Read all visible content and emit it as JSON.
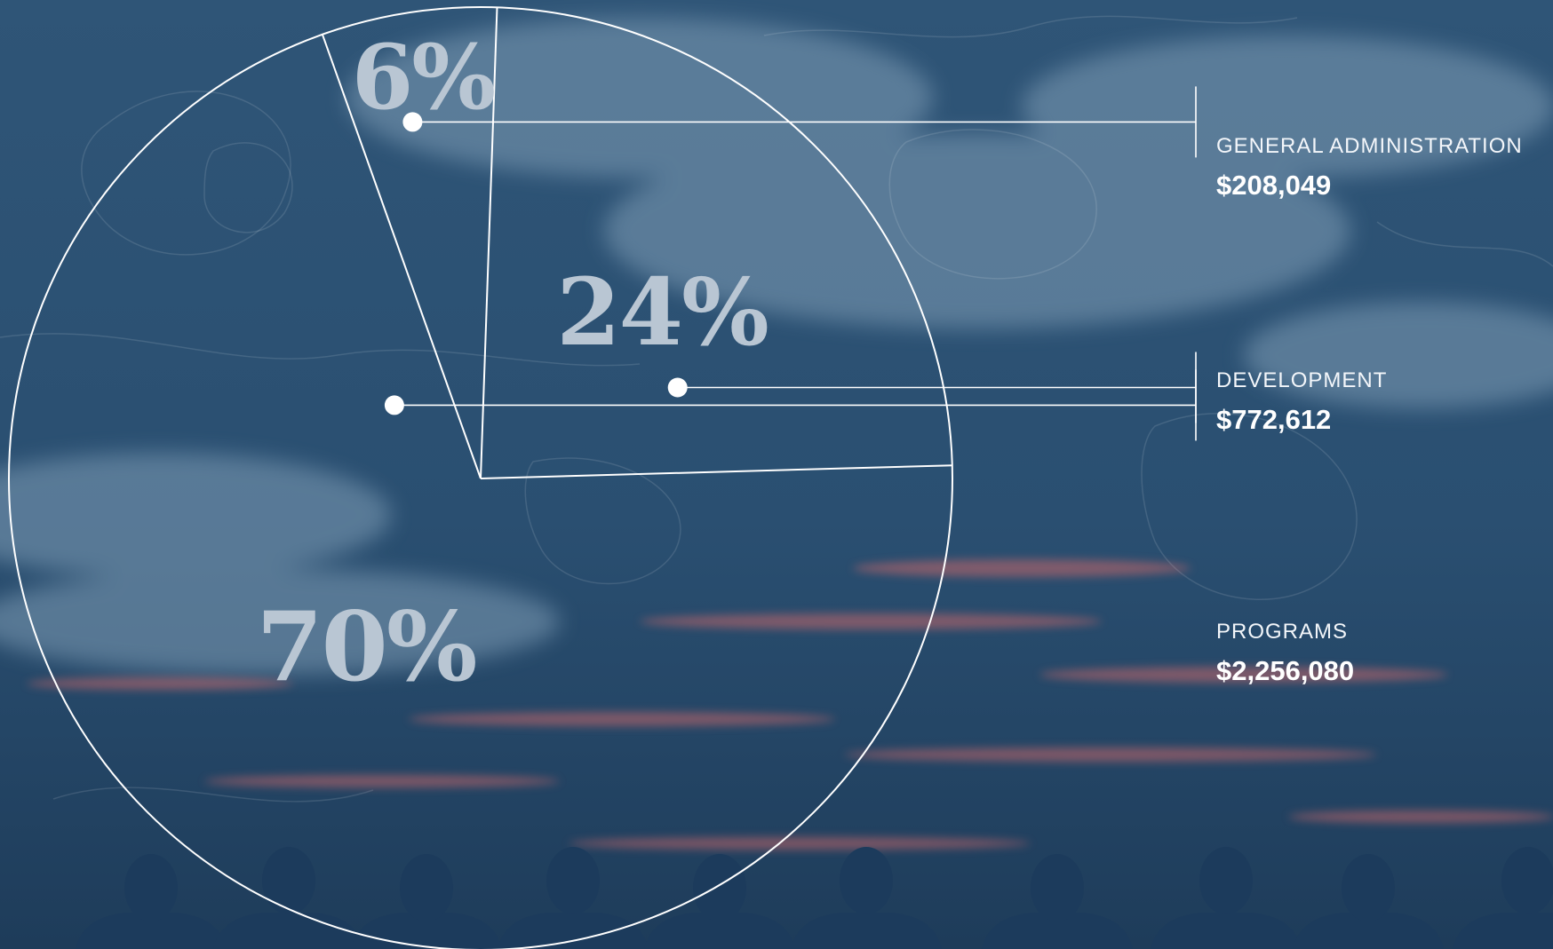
{
  "chart_data": {
    "type": "pie",
    "slices": [
      {
        "label": "GENERAL ADMINISTRATION",
        "amount": "$208,049",
        "percent_label": "6%",
        "value": 6
      },
      {
        "label": "DEVELOPMENT",
        "amount": "$772,612",
        "percent_label": "24%",
        "value": 24
      },
      {
        "label": "PROGRAMS",
        "amount": "$2,256,080",
        "percent_label": "70%",
        "value": 70
      }
    ],
    "legend_position": "right"
  },
  "colors": {
    "sky_top": "#2f5577",
    "sky_mid": "#2a4f71",
    "sky_bottom": "#1e3c5a",
    "cloud": "#7f9db6",
    "sunset": "#c8676b",
    "silhouette": "#1c3b5c",
    "line": "#ffffff",
    "percent_text": "#b9c6d3"
  }
}
